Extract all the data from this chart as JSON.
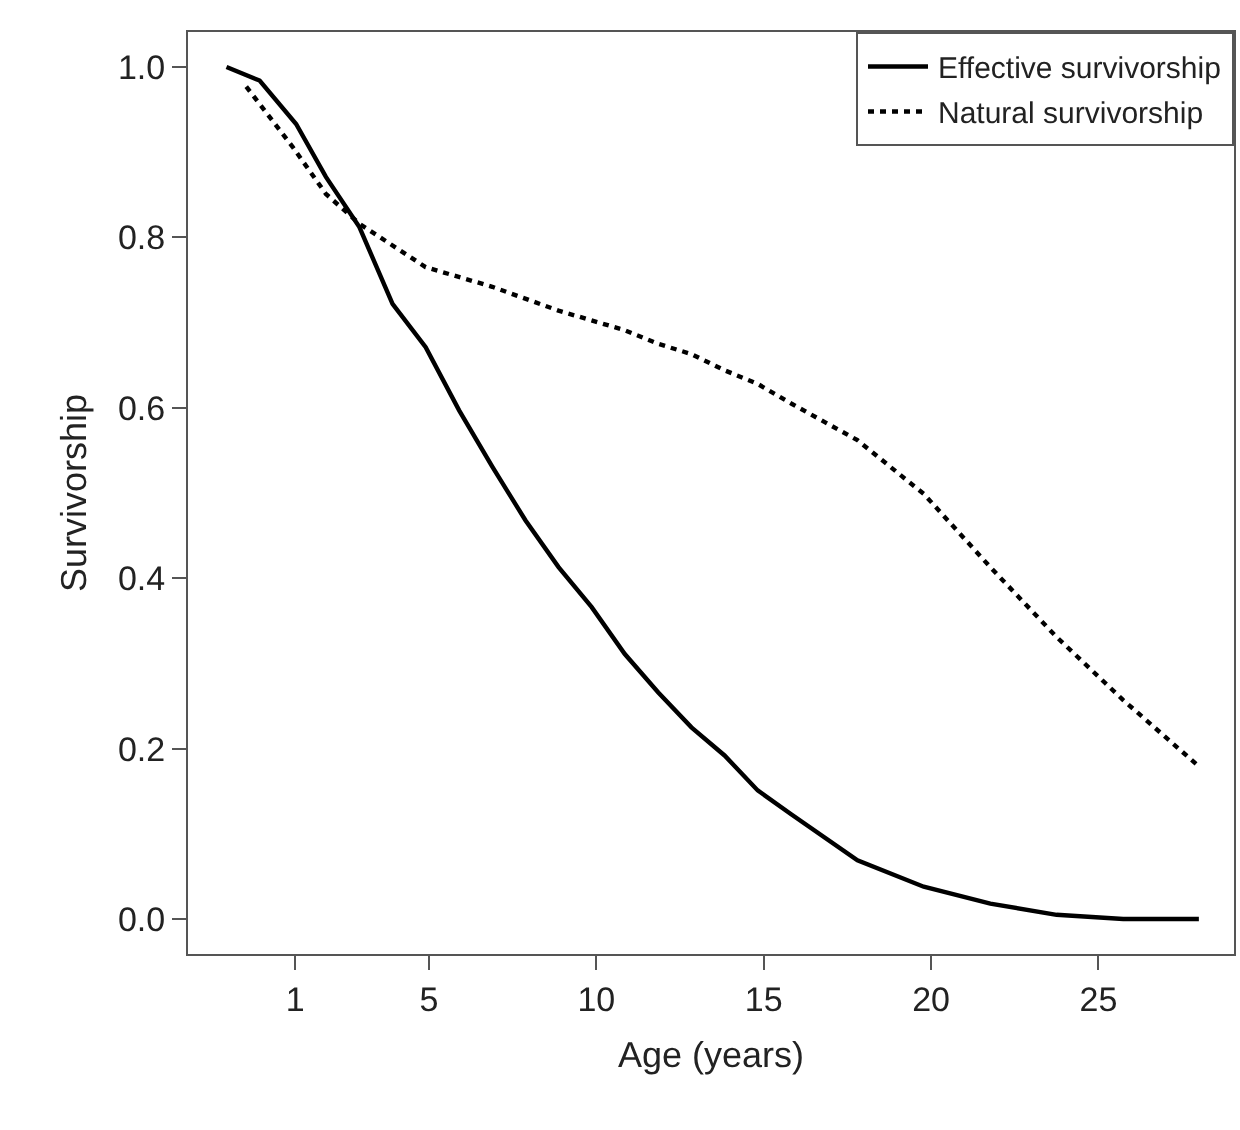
{
  "chart_data": {
    "type": "line",
    "xlabel": "Age (years)",
    "ylabel": "Survivorship",
    "xlim": [
      -2.2,
      29.05
    ],
    "xticks": [
      1,
      5,
      10,
      15,
      20,
      25
    ],
    "ylim": [
      -0.041,
      1.041
    ],
    "yticks": [
      {
        "value": 0,
        "label": "0.0"
      },
      0.2,
      0.4,
      0.6,
      0.8,
      {
        "value": 1,
        "label": "1.0"
      }
    ],
    "grid": false,
    "legend": "top right",
    "marker": "none",
    "series": [
      {
        "name": "Effective survivorship",
        "color": "#000000",
        "line_style": "solid",
        "x": [
          -1.05,
          -0.06,
          1.03,
          1.92,
          2.92,
          3.91,
          4.9,
          5.9,
          6.89,
          7.88,
          8.87,
          9.86,
          10.85,
          11.85,
          12.84,
          13.83,
          14.82,
          15.82,
          17.8,
          19.78,
          21.77,
          23.75,
          25.74,
          28.0
        ],
        "values": [
          1.0,
          0.984,
          0.933,
          0.871,
          0.812,
          0.722,
          0.671,
          0.597,
          0.531,
          0.468,
          0.413,
          0.366,
          0.311,
          0.266,
          0.225,
          0.192,
          0.151,
          0.123,
          0.069,
          0.038,
          0.018,
          0.005,
          0.0,
          0.0
        ]
      },
      {
        "name": "Natural survivorship",
        "color": "#000000",
        "line_style": "dotted",
        "x": [
          -0.46,
          0.93,
          1.92,
          2.92,
          4.9,
          6.89,
          8.87,
          10.85,
          11.85,
          12.84,
          13.83,
          14.82,
          15.82,
          17.8,
          19.78,
          21.77,
          23.75,
          25.74,
          27.92
        ],
        "values": [
          0.977,
          0.906,
          0.851,
          0.816,
          0.765,
          0.742,
          0.714,
          0.691,
          0.675,
          0.663,
          0.644,
          0.628,
          0.605,
          0.562,
          0.499,
          0.413,
          0.331,
          0.257,
          0.182
        ]
      }
    ]
  }
}
